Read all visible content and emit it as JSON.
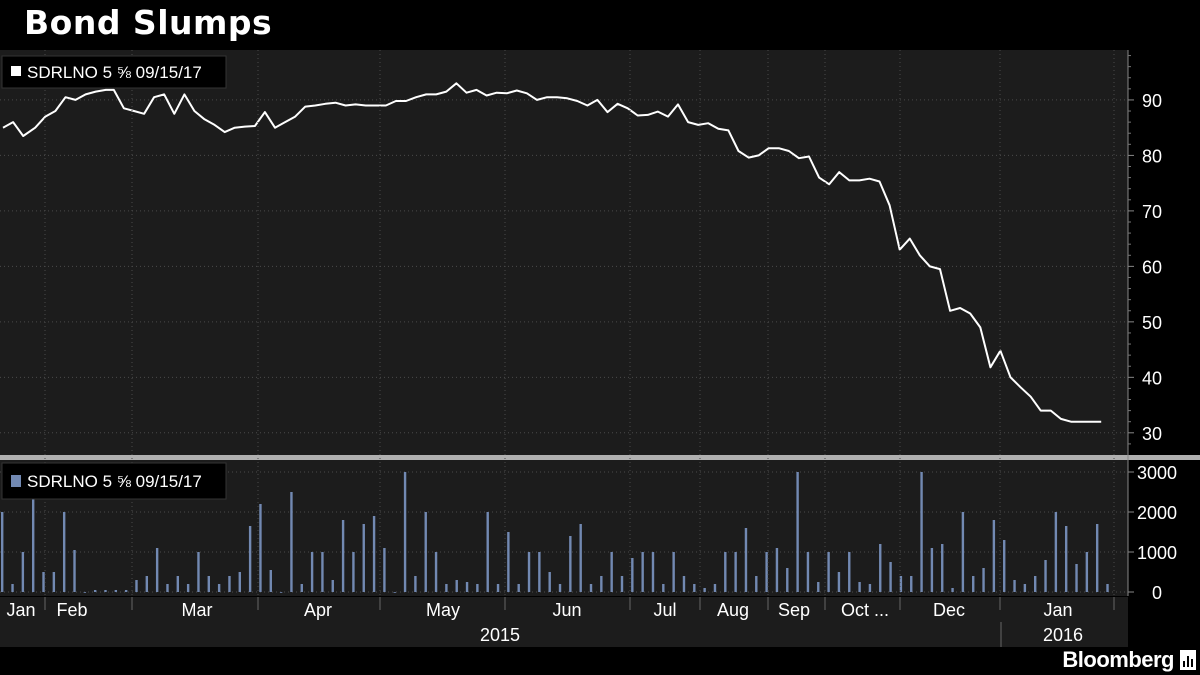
{
  "title": "Bond Slumps",
  "brand": "Bloomberg",
  "colors": {
    "background": "#000000",
    "panel": "#1c1c1c",
    "price_line": "#ffffff",
    "volume_bar": "#7289b2",
    "grid": "#555555",
    "separator": "#b0b0b0"
  },
  "chart_data": [
    {
      "type": "line",
      "legend": "SDRLNO 5 ⅝ 09/15/17",
      "ylim": [
        26,
        99
      ],
      "yticks": [
        30,
        40,
        50,
        60,
        70,
        80,
        90
      ],
      "grid": true,
      "legend_position": "top-left",
      "x": [
        0,
        5,
        10,
        16,
        21,
        26,
        31,
        36,
        41,
        46,
        51,
        55,
        60,
        65,
        70,
        75,
        80,
        85,
        90,
        95,
        100,
        105,
        110,
        115,
        120,
        125,
        130,
        135,
        140,
        145,
        150,
        155,
        160,
        165,
        170,
        175,
        180,
        185,
        190,
        195,
        200,
        205,
        210,
        215,
        220,
        225,
        230,
        235,
        240,
        245,
        250,
        255,
        260,
        265,
        270,
        275,
        280,
        285,
        290,
        295,
        300,
        305,
        310,
        315,
        320,
        325,
        330,
        335,
        340,
        345,
        350,
        355,
        360,
        365,
        370
      ],
      "values": [
        85,
        86,
        83.5,
        85,
        87,
        88,
        90.5,
        90,
        91,
        91.5,
        91.8,
        91.8,
        88.5,
        88,
        87.5,
        90.5,
        91,
        87.5,
        91,
        88,
        86.5,
        85.5,
        84.2,
        85,
        85.2,
        85.3,
        87.8,
        85,
        86,
        87,
        88.8,
        89,
        89.3,
        89.5,
        89,
        89.2,
        89,
        89,
        89,
        89.8,
        89.8,
        90.5,
        91,
        91,
        91.5,
        93,
        91.3,
        91.8,
        90.8,
        91.3,
        91.2,
        91.7,
        91.2,
        90,
        90.5,
        90.5,
        90.3,
        89.8,
        89,
        90,
        87.8,
        89.3,
        88.5,
        87.2,
        87.3,
        87.9,
        87,
        89.2,
        86,
        85.5,
        85.8,
        84.8,
        84.5,
        80.8,
        79.6
      ],
      "x2": [
        375,
        380,
        385,
        390,
        395,
        400,
        405,
        410,
        415,
        420,
        425,
        430,
        435,
        440,
        445,
        450,
        455,
        460,
        465,
        470,
        475,
        480,
        485,
        490,
        495,
        500,
        505,
        510,
        515,
        520,
        525,
        530,
        535,
        540,
        545
      ],
      "values2": [
        80,
        81.3,
        81.3,
        80.8,
        79.5,
        79.8,
        76,
        74.8,
        77,
        75.5,
        75.5,
        75.8,
        75.3,
        71,
        63,
        65,
        62,
        60,
        59.5,
        52,
        52.5,
        51.5,
        49,
        41.8,
        44.8,
        40,
        38.2,
        36.5,
        34,
        34,
        32.5,
        32,
        32,
        32,
        32
      ]
    },
    {
      "type": "bar",
      "legend": "SDRLNO 5 ⅝ 09/15/17",
      "ylim": [
        -100,
        3300
      ],
      "yticks": [
        0,
        1000,
        2000,
        3000
      ],
      "legend_position": "top-left",
      "values": [
        2000,
        200,
        1000,
        2400,
        500,
        500,
        2000,
        1050,
        0,
        50,
        50,
        50,
        50,
        300,
        400,
        1100,
        200,
        400,
        200,
        1000,
        400,
        200,
        400,
        500,
        1650,
        2200,
        550,
        0,
        2500,
        200,
        1000,
        1000,
        300,
        1800,
        1000,
        1700,
        1900,
        1100,
        0,
        3000,
        400,
        2000,
        1000,
        200,
        300,
        250,
        200,
        2000,
        200,
        1500,
        200,
        1000,
        1000,
        500,
        200,
        1400,
        1700,
        200,
        400,
        1000,
        400,
        850,
        1000,
        1000,
        200,
        1000,
        400,
        200,
        100,
        200,
        1000,
        1000,
        1600,
        400,
        1000,
        1100,
        600,
        3000,
        1000,
        250,
        1000,
        500,
        1000,
        250,
        200,
        1200,
        750,
        400,
        400,
        3000,
        1100,
        1200,
        100,
        2000,
        400,
        600,
        1800,
        1300,
        300,
        200,
        400,
        800,
        2000,
        1650,
        700,
        1000,
        1700,
        200
      ],
      "xticks": [
        "Jan",
        "Feb",
        "Mar",
        "Apr",
        "May",
        "Jun",
        "Jul",
        "Aug",
        "Sep",
        "Oct ...",
        "Dec",
        "Jan"
      ],
      "years": [
        "2015",
        "2016"
      ]
    }
  ]
}
